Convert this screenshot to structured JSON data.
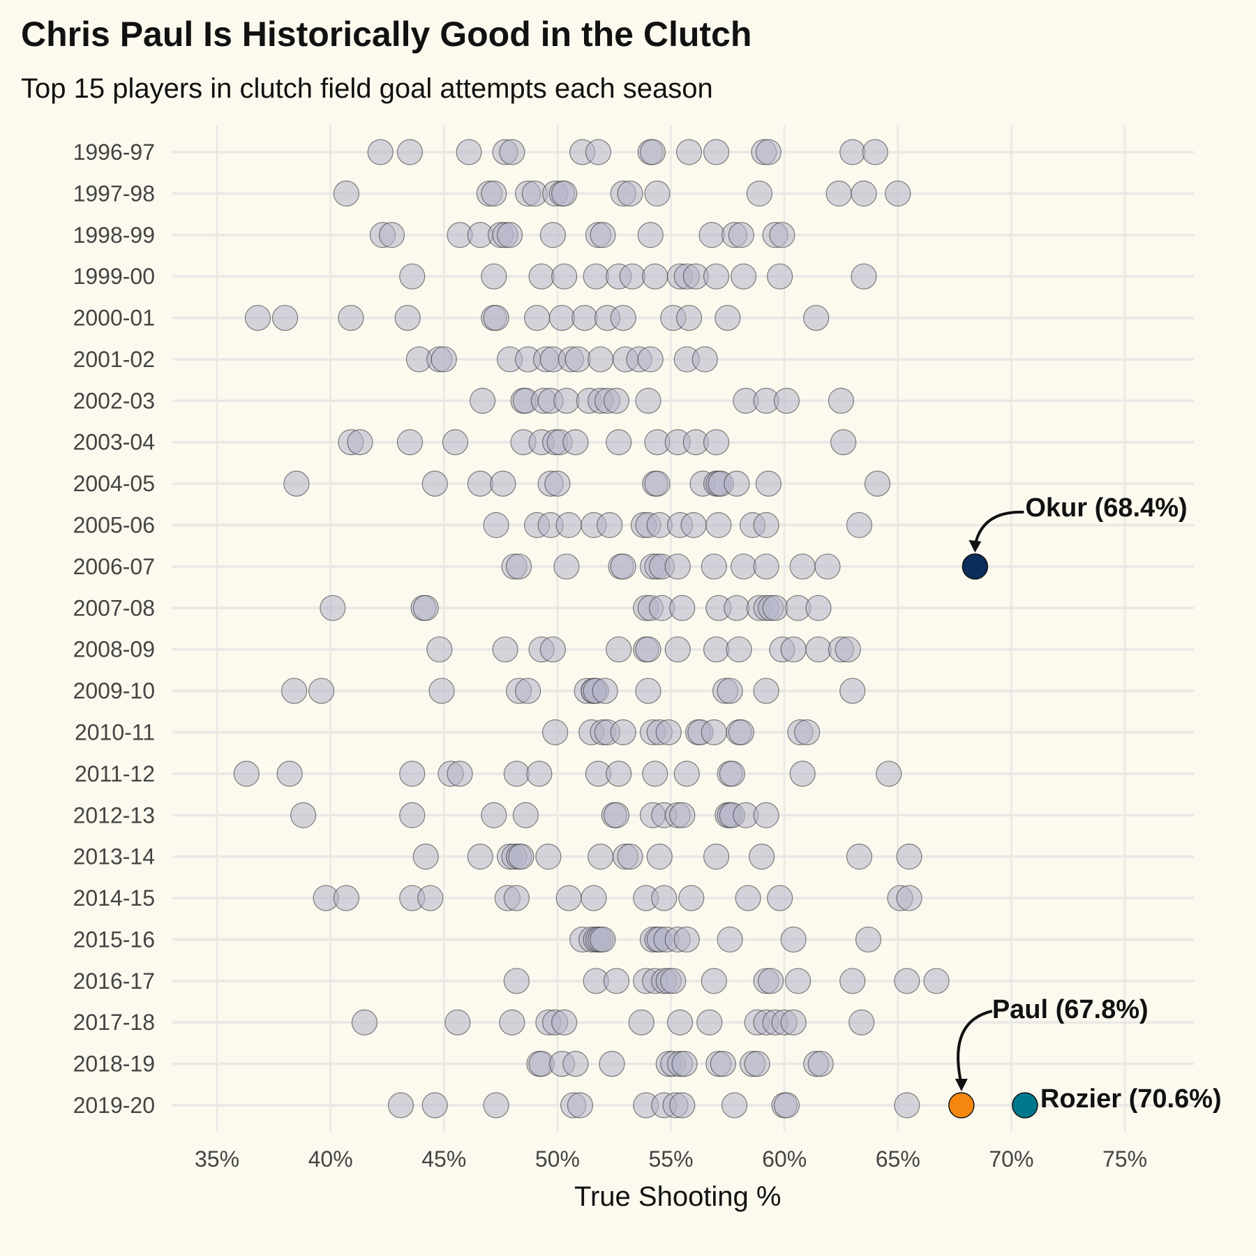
{
  "title": "Chris Paul Is Historically Good in the Clutch",
  "subtitle": "Top 15 players in clutch field goal attempts each season",
  "chart_data": {
    "type": "scatter",
    "title": "Chris Paul Is Historically Good in the Clutch",
    "subtitle": "Top 15 players in clutch field goal attempts each season",
    "xlabel": "True Shooting %",
    "ylabel": "",
    "xlim": [
      33,
      78
    ],
    "xticks": [
      "35%",
      "40%",
      "45%",
      "50%",
      "55%",
      "60%",
      "65%",
      "70%",
      "75%"
    ],
    "xtick_values": [
      35,
      40,
      45,
      50,
      55,
      60,
      65,
      70,
      75
    ],
    "grid": true,
    "colors": {
      "default": "#b4b4c8",
      "okur": "#0b2d5b",
      "paul": "#f5870f",
      "rozier": "#00788c",
      "background": "#fcf9ef"
    },
    "seasons": [
      {
        "season": "1996-97",
        "values": [
          42.2,
          43.5,
          46.1,
          47.7,
          48.0,
          51.1,
          51.8,
          54.1,
          54.2,
          55.8,
          57.0,
          59.1,
          59.3,
          63.0,
          64.0
        ]
      },
      {
        "season": "1997-98",
        "values": [
          40.7,
          47.0,
          47.2,
          48.7,
          49.0,
          49.9,
          50.2,
          50.3,
          52.9,
          53.2,
          54.4,
          58.9,
          62.4,
          63.5,
          65.0
        ]
      },
      {
        "season": "1998-99",
        "values": [
          42.3,
          42.7,
          45.7,
          46.6,
          47.5,
          47.7,
          47.9,
          49.8,
          51.8,
          52.0,
          54.1,
          56.8,
          57.8,
          58.1,
          59.6,
          59.9
        ]
      },
      {
        "season": "1999-00",
        "values": [
          43.6,
          47.2,
          49.3,
          50.3,
          51.7,
          52.7,
          53.3,
          54.3,
          55.4,
          55.7,
          56.1,
          57.0,
          58.2,
          59.8,
          63.5
        ]
      },
      {
        "season": "2000-01",
        "values": [
          36.8,
          38.0,
          40.9,
          43.4,
          47.2,
          47.3,
          49.1,
          50.2,
          51.2,
          52.2,
          52.9,
          55.1,
          55.8,
          57.5,
          61.4
        ]
      },
      {
        "season": "2001-02",
        "values": [
          43.9,
          44.8,
          45.0,
          47.9,
          48.7,
          49.5,
          49.8,
          50.6,
          50.9,
          51.9,
          53.0,
          53.6,
          54.1,
          55.7,
          56.5
        ]
      },
      {
        "season": "2002-03",
        "values": [
          46.7,
          48.5,
          48.6,
          49.4,
          49.7,
          50.4,
          51.4,
          51.9,
          52.2,
          52.6,
          54.0,
          58.3,
          59.2,
          60.1,
          62.5
        ]
      },
      {
        "season": "2003-04",
        "values": [
          40.9,
          41.3,
          43.5,
          45.5,
          48.5,
          49.3,
          49.9,
          50.1,
          50.8,
          52.7,
          54.4,
          55.3,
          56.1,
          57.0,
          62.6
        ]
      },
      {
        "season": "2004-05",
        "values": [
          38.5,
          44.6,
          46.6,
          47.6,
          49.7,
          50.0,
          54.3,
          54.4,
          56.4,
          57.0,
          57.1,
          57.2,
          57.9,
          59.3,
          64.1
        ]
      },
      {
        "season": "2005-06",
        "values": [
          47.3,
          49.1,
          49.7,
          50.5,
          51.6,
          52.3,
          53.8,
          54.0,
          54.5,
          55.4,
          56.0,
          57.1,
          58.6,
          59.2,
          63.3
        ]
      },
      {
        "season": "2006-07",
        "values": [
          48.1,
          48.3,
          50.4,
          52.8,
          52.9,
          54.2,
          54.4,
          54.6,
          55.3,
          56.9,
          58.2,
          59.2,
          60.8,
          61.9
        ]
      },
      {
        "season": "2007-08",
        "values": [
          40.1,
          44.1,
          44.2,
          53.9,
          54.1,
          54.6,
          55.5,
          57.1,
          57.9,
          58.9,
          59.2,
          59.4,
          59.6,
          60.6,
          61.5
        ]
      },
      {
        "season": "2008-09",
        "values": [
          44.8,
          47.7,
          49.3,
          49.8,
          52.7,
          53.9,
          54.0,
          55.3,
          57.0,
          58.0,
          59.9,
          60.4,
          61.5,
          62.5,
          62.8
        ]
      },
      {
        "season": "2009-10",
        "values": [
          38.4,
          39.6,
          44.9,
          48.3,
          48.7,
          51.3,
          51.6,
          51.6,
          51.7,
          52.1,
          54.0,
          57.4,
          57.6,
          59.2,
          63.0
        ]
      },
      {
        "season": "2010-11",
        "values": [
          49.9,
          51.5,
          52.0,
          52.2,
          52.9,
          54.2,
          54.5,
          54.9,
          56.2,
          56.3,
          56.9,
          58.0,
          58.1,
          60.7,
          61.0
        ]
      },
      {
        "season": "2011-12",
        "values": [
          36.3,
          38.2,
          43.6,
          45.3,
          45.7,
          48.2,
          49.2,
          51.8,
          52.7,
          54.3,
          55.7,
          57.6,
          57.7,
          60.8,
          64.6
        ]
      },
      {
        "season": "2012-13",
        "values": [
          38.8,
          43.6,
          47.2,
          48.6,
          52.5,
          52.6,
          54.2,
          54.7,
          55.3,
          55.5,
          57.5,
          57.6,
          57.7,
          58.3,
          59.2
        ]
      },
      {
        "season": "2013-14",
        "values": [
          44.2,
          46.6,
          47.9,
          48.1,
          48.3,
          48.4,
          49.6,
          51.9,
          53.0,
          53.2,
          54.5,
          57.0,
          59.0,
          63.3,
          65.5
        ]
      },
      {
        "season": "2014-15",
        "values": [
          39.8,
          40.7,
          43.6,
          44.4,
          47.8,
          48.2,
          50.5,
          51.6,
          53.9,
          54.7,
          55.9,
          58.4,
          59.8,
          65.1,
          65.5
        ]
      },
      {
        "season": "2015-16",
        "values": [
          51.1,
          51.5,
          51.7,
          51.8,
          51.9,
          52.0,
          54.2,
          54.4,
          54.5,
          54.8,
          55.3,
          55.7,
          57.6,
          60.4,
          63.7
        ]
      },
      {
        "season": "2016-17",
        "values": [
          48.2,
          51.7,
          52.6,
          53.9,
          54.3,
          54.7,
          54.9,
          55.1,
          56.9,
          59.2,
          59.4,
          60.6,
          63.0,
          65.4,
          66.7
        ]
      },
      {
        "season": "2017-18",
        "values": [
          41.5,
          45.6,
          48.0,
          49.6,
          49.9,
          50.3,
          53.7,
          55.4,
          56.7,
          58.8,
          59.2,
          59.6,
          60.0,
          60.4,
          63.4
        ]
      },
      {
        "season": "2018-19",
        "values": [
          49.2,
          49.3,
          50.2,
          50.8,
          52.4,
          54.9,
          55.1,
          55.4,
          55.6,
          57.1,
          57.3,
          58.6,
          58.8,
          61.4,
          61.6
        ]
      },
      {
        "season": "2019-20",
        "values": [
          43.1,
          44.6,
          47.3,
          50.7,
          51.0,
          53.9,
          54.7,
          55.2,
          55.5,
          57.8,
          60.0,
          60.1,
          65.4
        ]
      }
    ],
    "highlights": [
      {
        "key": "okur",
        "season": "2006-07",
        "value": 68.4,
        "label": "Okur (68.4%)"
      },
      {
        "key": "paul",
        "season": "2019-20",
        "value": 67.8,
        "label": "Paul (67.8%)"
      },
      {
        "key": "rozier",
        "season": "2019-20",
        "value": 70.6,
        "label": "Rozier (70.6%)"
      }
    ]
  }
}
